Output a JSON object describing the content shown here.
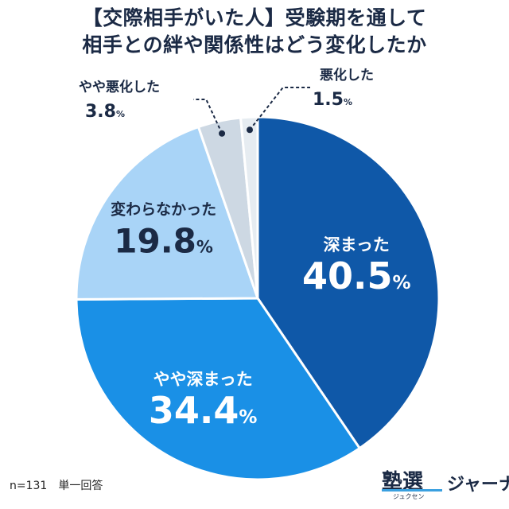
{
  "title_lines": [
    "【交際相手がいた人】受験期を通して",
    "相手との絆や関係性はどう変化したか"
  ],
  "note": "n=131　単一回答",
  "brand": {
    "main": "塾選",
    "sub": "ジャーナル",
    "ruby": "ジュクセン"
  },
  "colors": {
    "deepened": "#0f58a8",
    "somewhat_deepened": "#1a90e6",
    "unchanged": "#a9d4f7",
    "somewhat_worse": "#cdd8e3",
    "worse": "#e6ecf1",
    "label_dark": "#1b2a45",
    "label_light": "#ffffff"
  },
  "chart_data": {
    "type": "pie",
    "unit": "%",
    "start": "12 o'clock",
    "direction": "clockwise",
    "slices": [
      {
        "label": "深まった",
        "value": 40.5
      },
      {
        "label": "やや深まった",
        "value": 34.4
      },
      {
        "label": "変わらなかった",
        "value": 19.8
      },
      {
        "label": "やや悪化した",
        "value": 3.8
      },
      {
        "label": "悪化した",
        "value": 1.5
      }
    ]
  }
}
